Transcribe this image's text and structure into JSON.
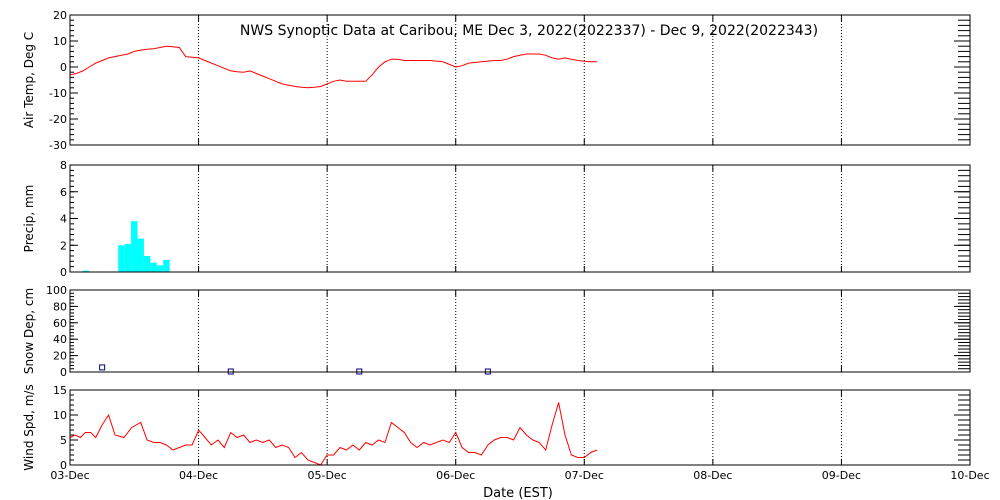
{
  "title": "NWS Synoptic Data at Caribou, ME   Dec  3, 2022(2022337) - Dec  9, 2022(2022343)",
  "xlabel": "Date (EST)",
  "x_ticks": [
    "03-Dec",
    "04-Dec",
    "05-Dec",
    "06-Dec",
    "07-Dec",
    "08-Dec",
    "09-Dec",
    "10-Dec"
  ],
  "colors": {
    "line": "#ff0000",
    "precip": "#00ffff",
    "snow_marker": "#000080",
    "axes": "#000000"
  },
  "chart_data": [
    {
      "type": "line",
      "ylabel": "Air Temp, Deg C",
      "ylim": [
        -30,
        20
      ],
      "yticks": [
        -30,
        -20,
        -10,
        0,
        10,
        20
      ],
      "xlim": [
        0,
        7
      ],
      "grid": "vertical dotted",
      "series": [
        {
          "x": [
            0,
            0.05,
            0.1,
            0.15,
            0.2,
            0.25,
            0.3,
            0.35,
            0.4,
            0.45,
            0.5,
            0.55,
            0.6,
            0.65,
            0.7,
            0.75,
            0.8,
            0.85,
            0.9,
            1.0,
            1.05,
            1.1,
            1.15,
            1.2,
            1.25,
            1.3,
            1.35,
            1.4,
            1.45,
            1.5,
            1.55,
            1.6,
            1.65,
            1.7,
            1.75,
            1.8,
            1.85,
            1.9,
            1.95,
            2.0,
            2.05,
            2.1,
            2.15,
            2.2,
            2.25,
            2.3,
            2.35,
            2.4,
            2.45,
            2.5,
            2.55,
            2.6,
            2.7,
            2.8,
            2.9,
            2.95,
            3.0,
            3.05,
            3.1,
            3.2,
            3.3,
            3.35,
            3.4,
            3.45,
            3.5,
            3.55,
            3.6,
            3.65,
            3.7,
            3.75,
            3.8,
            3.85,
            3.9,
            3.95,
            4.0,
            4.05,
            4.1
          ],
          "y": [
            -3,
            -2.5,
            -1.5,
            0,
            1.5,
            2.5,
            3.5,
            4,
            4.5,
            5,
            6,
            6.5,
            6.8,
            7,
            7.5,
            8,
            7.8,
            7.5,
            4,
            3.5,
            2.5,
            1.5,
            0.5,
            -0.5,
            -1.5,
            -1.8,
            -2,
            -1.5,
            -2.5,
            -3.5,
            -4.5,
            -5.5,
            -6.5,
            -7,
            -7.5,
            -7.8,
            -8,
            -7.8,
            -7.5,
            -6.5,
            -5.5,
            -5,
            -5.5,
            -5.5,
            -5.5,
            -5.5,
            -3,
            0,
            2,
            3,
            3,
            2.5,
            2.5,
            2.5,
            2,
            1,
            0,
            0.5,
            1.5,
            2.0,
            2.5,
            2.5,
            3,
            4,
            4.5,
            5,
            5,
            5,
            4.5,
            3.5,
            3,
            3.5,
            3,
            2.5,
            2.2,
            2,
            2
          ]
        }
      ]
    },
    {
      "type": "bar",
      "ylabel": "Precip, mm",
      "ylim": [
        0,
        8
      ],
      "yticks": [
        0,
        2,
        4,
        6,
        8
      ],
      "xlim": [
        0,
        7
      ],
      "grid": "vertical dotted",
      "series": [
        {
          "x": [
            0.125,
            0.4,
            0.45,
            0.5,
            0.55,
            0.6,
            0.65,
            0.7,
            0.75
          ],
          "values": [
            0.1,
            2.0,
            2.1,
            3.8,
            2.5,
            1.2,
            0.7,
            0.5,
            0.9
          ],
          "width_days": 0.05
        }
      ]
    },
    {
      "type": "scatter",
      "ylabel": "Snow Dep, cm",
      "ylim": [
        0,
        100
      ],
      "yticks": [
        0,
        20,
        40,
        60,
        80,
        100
      ],
      "xlim": [
        0,
        7
      ],
      "grid": "vertical dotted",
      "series": [
        {
          "x": [
            0.25,
            1.25,
            2.25,
            3.25
          ],
          "values": [
            5,
            0,
            0,
            0
          ]
        }
      ]
    },
    {
      "type": "line",
      "ylabel": "Wind Spd, m/s",
      "ylim": [
        0,
        15
      ],
      "yticks": [
        0,
        5,
        10,
        15
      ],
      "xlim": [
        0,
        7
      ],
      "grid": "vertical dotted",
      "series": [
        {
          "x": [
            0,
            0.04,
            0.08,
            0.12,
            0.16,
            0.2,
            0.25,
            0.3,
            0.35,
            0.42,
            0.48,
            0.55,
            0.6,
            0.65,
            0.7,
            0.75,
            0.8,
            0.85,
            0.9,
            0.95,
            1.0,
            1.05,
            1.1,
            1.15,
            1.2,
            1.25,
            1.3,
            1.35,
            1.4,
            1.45,
            1.5,
            1.55,
            1.6,
            1.65,
            1.7,
            1.75,
            1.8,
            1.85,
            1.9,
            1.95,
            2.0,
            2.05,
            2.1,
            2.15,
            2.2,
            2.25,
            2.3,
            2.35,
            2.4,
            2.45,
            2.5,
            2.55,
            2.6,
            2.65,
            2.7,
            2.75,
            2.8,
            2.85,
            2.9,
            2.95,
            3.0,
            3.05,
            3.1,
            3.15,
            3.2,
            3.25,
            3.3,
            3.35,
            3.4,
            3.45,
            3.5,
            3.55,
            3.6,
            3.65,
            3.7,
            3.75,
            3.8,
            3.85,
            3.9,
            3.95,
            4.0,
            4.05,
            4.1
          ],
          "y": [
            5.5,
            6,
            5.5,
            6.5,
            6.5,
            5.5,
            8,
            10,
            6,
            5.5,
            7.5,
            8.5,
            5,
            4.5,
            4.5,
            4,
            3,
            3.5,
            4,
            4,
            7,
            5.5,
            4,
            5,
            3.5,
            6.5,
            5.5,
            6,
            4.5,
            5,
            4.5,
            5,
            3.5,
            4,
            3.5,
            1.5,
            2.5,
            1,
            0.5,
            0,
            2,
            2,
            3.5,
            3,
            4,
            3,
            4.5,
            4,
            5,
            4.5,
            8.5,
            7.5,
            6.5,
            4.5,
            3.5,
            4.5,
            4,
            4.5,
            5,
            4.5,
            6.5,
            3.5,
            2.5,
            2.5,
            2,
            4,
            5,
            5.5,
            5.5,
            5,
            7.5,
            6,
            5,
            4.5,
            3,
            8,
            12.5,
            6,
            2,
            1.5,
            1.5,
            2.5,
            3
          ]
        }
      ]
    }
  ]
}
